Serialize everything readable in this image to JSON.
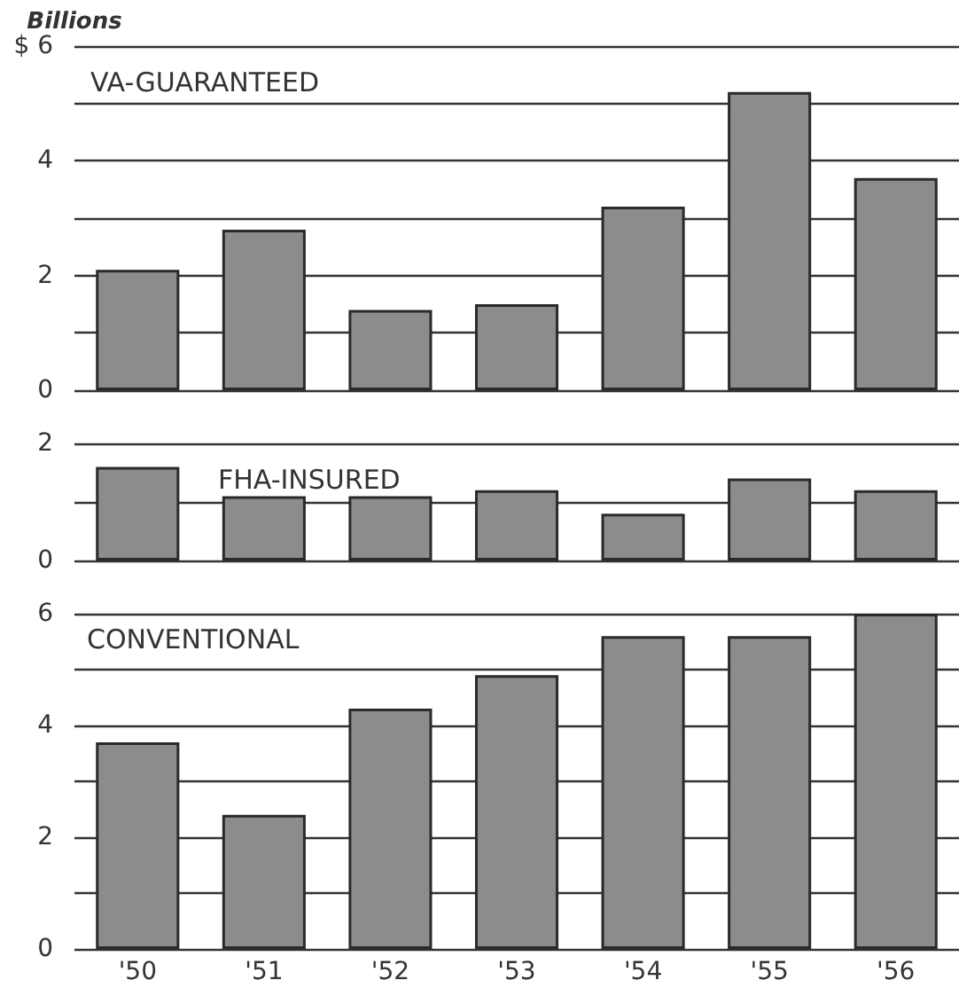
{
  "chart_data": [
    {
      "type": "bar",
      "title": "VA-GUARANTEED",
      "ylabel": "Billions",
      "categories": [
        null,
        null,
        null,
        null,
        null,
        null,
        null
      ],
      "values": [
        2.1,
        2.8,
        1.4,
        1.5,
        3.2,
        5.2,
        3.7
      ],
      "color": "#8c8c8c",
      "ylim": [
        0,
        6
      ],
      "yticks": [
        0,
        {
          "value": 1,
          "label": null
        },
        2,
        {
          "value": 3,
          "label": null
        },
        4,
        {
          "value": 5,
          "label": null
        },
        {
          "value": 6,
          "label": "$ 6"
        }
      ],
      "grid": "y",
      "tick_labels": "y"
    },
    {
      "type": "bar",
      "title": "FHA-INSURED",
      "categories": [
        null,
        null,
        null,
        null,
        null,
        null,
        null
      ],
      "values": [
        1.6,
        1.1,
        1.1,
        1.2,
        0.8,
        1.4,
        1.2
      ],
      "color": "#8c8c8c",
      "ylim": [
        0,
        2
      ],
      "yticks": [
        0,
        {
          "value": 1,
          "label": null
        },
        2
      ],
      "grid": "y",
      "tick_labels": "y"
    },
    {
      "type": "bar",
      "title": "CONVENTIONAL",
      "categories": [
        "'50",
        "'51",
        "'52",
        "'53",
        "'54",
        "'55",
        "'56"
      ],
      "values": [
        3.7,
        2.4,
        4.3,
        4.9,
        5.6,
        5.6,
        6.0
      ],
      "color": "#8c8c8c",
      "ylim": [
        0,
        6
      ],
      "yticks": [
        0,
        {
          "value": 1,
          "label": null
        },
        2,
        {
          "value": 3,
          "label": null
        },
        4,
        {
          "value": 5,
          "label": null
        },
        6
      ],
      "grid": "y"
    }
  ]
}
